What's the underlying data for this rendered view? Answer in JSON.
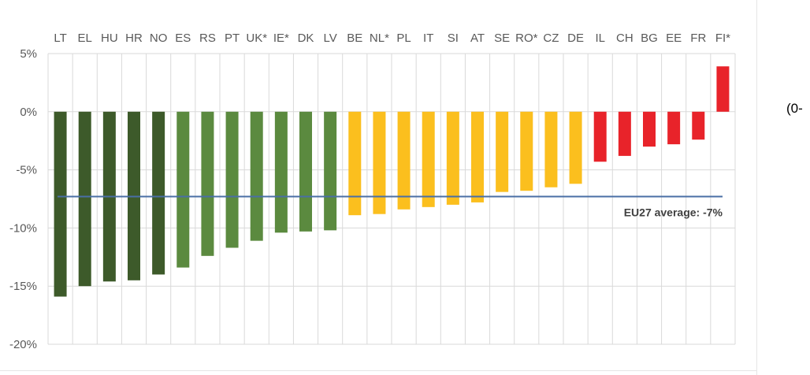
{
  "chart_data": {
    "type": "bar",
    "categories": [
      "LT",
      "EL",
      "HU",
      "HR",
      "NO",
      "ES",
      "RS",
      "PT",
      "UK*",
      "IE*",
      "DK",
      "LV",
      "BE",
      "NL*",
      "PL",
      "IT",
      "SI",
      "AT",
      "SE",
      "RO*",
      "CZ",
      "DE",
      "IL",
      "CH",
      "BG",
      "EE",
      "FR",
      "FI*"
    ],
    "values": [
      -15.9,
      -15.0,
      -14.6,
      -14.5,
      -14.0,
      -13.4,
      -12.4,
      -11.7,
      -11.1,
      -10.4,
      -10.3,
      -10.2,
      -8.9,
      -8.8,
      -8.4,
      -8.2,
      -8.0,
      -7.8,
      -6.9,
      -6.8,
      -6.5,
      -6.2,
      -4.3,
      -3.8,
      -3.0,
      -2.8,
      -2.4,
      3.9
    ],
    "colors": [
      "#3d5a2a",
      "#3d5a2a",
      "#3d5a2a",
      "#3d5a2a",
      "#3d5a2a",
      "#5b8a3f",
      "#5b8a3f",
      "#5b8a3f",
      "#5b8a3f",
      "#5b8a3f",
      "#5b8a3f",
      "#5b8a3f",
      "#fbbf1e",
      "#fbbf1e",
      "#fbbf1e",
      "#fbbf1e",
      "#fbbf1e",
      "#fbbf1e",
      "#fbbf1e",
      "#fbbf1e",
      "#fbbf1e",
      "#fbbf1e",
      "#e8232a",
      "#e8232a",
      "#e8232a",
      "#e8232a",
      "#e8232a",
      "#e8232a"
    ],
    "ylim": [
      -20,
      5
    ],
    "yticks": [
      5,
      0,
      -5,
      -10,
      -15,
      -20
    ],
    "ytick_labels": [
      "5%",
      "0%",
      "-5%",
      "-10%",
      "-15%",
      "-20%"
    ],
    "grid": true,
    "category_axis_position": "top",
    "reference_line": {
      "value": -7.3,
      "label": "EU27 average: -7%",
      "color": "#4a6fa5"
    }
  },
  "side_note": "(0-"
}
